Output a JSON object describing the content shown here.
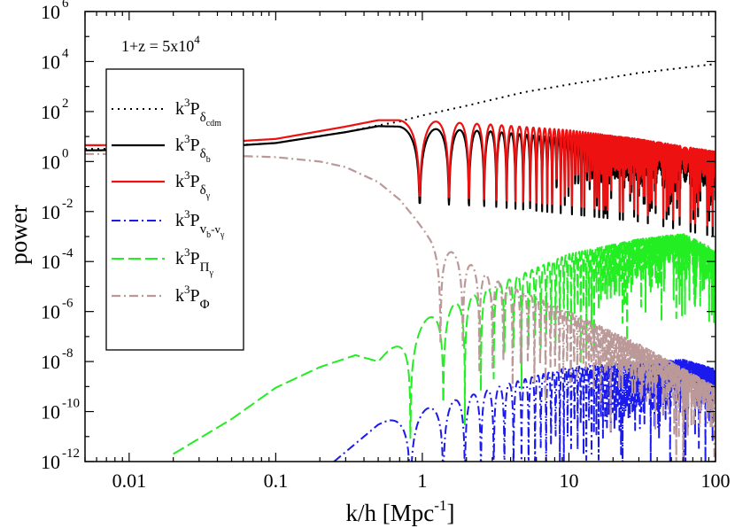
{
  "chart_data": {
    "type": "line",
    "title": "",
    "xlabel": "k/h [Mpc",
    "xlabel_sup": "-1",
    "xlabel_close": "]",
    "ylabel": "power",
    "xscale": "log",
    "yscale": "log",
    "xlim": [
      0.005,
      100
    ],
    "ylim": [
      1e-12,
      1000000.0
    ],
    "x_ticks": [
      {
        "value": 0.01,
        "label": "0.01"
      },
      {
        "value": 0.1,
        "label": "0.1"
      },
      {
        "value": 1,
        "label": "1"
      },
      {
        "value": 10,
        "label": "10"
      },
      {
        "value": 100,
        "label": "100"
      }
    ],
    "y_ticks": [
      {
        "value": 1000000.0,
        "base": "10",
        "exp": "6"
      },
      {
        "value": 10000.0,
        "base": "10",
        "exp": "4"
      },
      {
        "value": 100.0,
        "base": "10",
        "exp": "2"
      },
      {
        "value": 1,
        "base": "10",
        "exp": "0"
      },
      {
        "value": 0.01,
        "base": "10",
        "exp": "-2"
      },
      {
        "value": 0.0001,
        "base": "10",
        "exp": "-4"
      },
      {
        "value": 1e-06,
        "base": "10",
        "exp": "-6"
      },
      {
        "value": 1e-08,
        "base": "10",
        "exp": "-8"
      },
      {
        "value": 1e-10,
        "base": "10",
        "exp": "-10"
      },
      {
        "value": 1e-12,
        "base": "10",
        "exp": "-12"
      }
    ],
    "annotation": {
      "text": "1+z = 5x10",
      "sup": "4"
    },
    "legend_position": "upper-left",
    "series": [
      {
        "name": "k3P_delta_cdm",
        "label_base": "k",
        "label_pow": "3",
        "label_main": "P",
        "label_sub": "δ",
        "label_subsub": "cdm",
        "color": "#000000",
        "dash": "2,5",
        "width": 2,
        "points": [
          [
            0.005,
            3.2
          ],
          [
            0.02,
            3.3
          ],
          [
            0.1,
            5.5
          ],
          [
            0.3,
            15
          ],
          [
            0.5,
            28
          ],
          [
            0.7,
            40
          ],
          [
            1,
            70
          ],
          [
            2,
            170
          ],
          [
            5,
            600
          ],
          [
            10,
            1200
          ],
          [
            30,
            3500
          ],
          [
            100,
            8000
          ]
        ]
      },
      {
        "name": "k3P_delta_b",
        "label_base": "k",
        "label_pow": "3",
        "label_main": "P",
        "label_sub": "δ",
        "label_subsub": "b",
        "color": "#000000",
        "dash": "",
        "width": 2.2,
        "envelope": [
          [
            0.005,
            2.8
          ],
          [
            0.02,
            3.0
          ],
          [
            0.1,
            5.5
          ],
          [
            0.3,
            15
          ],
          [
            0.5,
            26
          ],
          [
            0.7,
            25
          ],
          [
            1.2,
            20
          ],
          [
            3,
            16
          ],
          [
            10,
            8
          ],
          [
            30,
            4
          ],
          [
            100,
            1
          ]
        ],
        "osc_start": 0.68,
        "period": 0.56,
        "trough_drop": 3
      },
      {
        "name": "k3P_delta_gamma",
        "label_base": "k",
        "label_pow": "3",
        "label_main": "P",
        "label_sub": "δ",
        "label_subsub": "γ",
        "color": "#ee1111",
        "dash": "",
        "width": 2.2,
        "envelope": [
          [
            0.005,
            4.5
          ],
          [
            0.02,
            4.6
          ],
          [
            0.1,
            8
          ],
          [
            0.3,
            25
          ],
          [
            0.5,
            45
          ],
          [
            0.7,
            45
          ],
          [
            1.2,
            40
          ],
          [
            3,
            30
          ],
          [
            10,
            18
          ],
          [
            30,
            8
          ],
          [
            100,
            2.5
          ]
        ],
        "osc_start": 0.68,
        "period": 0.56,
        "trough_drop": 3
      },
      {
        "name": "k3P_vb_minus_vgamma",
        "label_base": "k",
        "label_pow": "3",
        "label_main": "P",
        "label_sub": "v",
        "label_subsub": "b",
        "label_sub2": "-v",
        "label_subsub2": "γ",
        "color": "#1a1aee",
        "dash": "10,4,2,4",
        "width": 2,
        "envelope": [
          [
            0.25,
            1e-12
          ],
          [
            0.5,
            3e-11
          ],
          [
            0.8,
            1e-10
          ],
          [
            1.2,
            1.5e-10
          ],
          [
            2,
            4e-10
          ],
          [
            5,
            2e-09
          ],
          [
            10,
            6e-09
          ],
          [
            30,
            9e-09
          ],
          [
            60,
            1.2e-08
          ],
          [
            100,
            5e-09
          ]
        ],
        "osc_start": 0.55,
        "period": 0.56,
        "trough_drop": 5
      },
      {
        "name": "k3P_Pi_gamma",
        "label_base": "k",
        "label_pow": "3",
        "label_main": "P",
        "label_sub": "Π",
        "label_subsub": "γ",
        "color": "#22ee22",
        "dash": "14,5",
        "width": 2,
        "envelope": [
          [
            0.02,
            2e-12
          ],
          [
            0.05,
            5e-11
          ],
          [
            0.1,
            9e-10
          ],
          [
            0.2,
            6e-09
          ],
          [
            0.35,
            1.8e-08
          ],
          [
            0.5,
            1e-08
          ],
          [
            0.8,
            2e-07
          ],
          [
            1,
            4e-07
          ],
          [
            1.5,
            1.5e-06
          ],
          [
            3,
            1e-05
          ],
          [
            10,
            0.0002
          ],
          [
            30,
            0.0008
          ],
          [
            60,
            0.0013
          ],
          [
            100,
            0.0003
          ]
        ],
        "osc_start": 0.55,
        "period": 0.56,
        "trough_drop": 5
      },
      {
        "name": "k3P_Phi",
        "label_base": "k",
        "label_pow": "3",
        "label_main": "P",
        "label_sub": "Φ",
        "label_subsub": "",
        "color": "#bb9999",
        "dash": "10,4,2,4",
        "width": 2.2,
        "envelope": [
          [
            0.005,
            2.0
          ],
          [
            0.02,
            2.0
          ],
          [
            0.1,
            1.5
          ],
          [
            0.2,
            1.0
          ],
          [
            0.3,
            0.6
          ],
          [
            0.5,
            0.15
          ],
          [
            0.7,
            0.03
          ],
          [
            0.9,
            0.005
          ],
          [
            1.1,
            0.001
          ],
          [
            1.5,
            0.0003
          ],
          [
            3,
            2e-05
          ],
          [
            10,
            1e-06
          ],
          [
            30,
            5e-08
          ],
          [
            100,
            1e-09
          ]
        ],
        "osc_start": 1.05,
        "period": 0.56,
        "trough_drop": 4
      }
    ]
  }
}
